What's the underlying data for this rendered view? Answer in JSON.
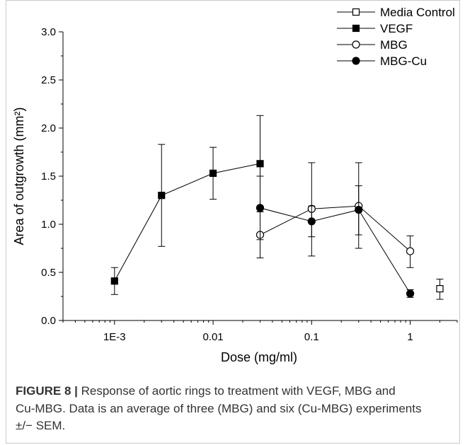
{
  "chart_data": {
    "type": "line",
    "xlabel": "Dose (mg/ml)",
    "ylabel": "Area of outgrowth (mm²)",
    "xscale": "log",
    "xlim": [
      0.0003,
      3
    ],
    "ylim": [
      0,
      3
    ],
    "xticks": [
      {
        "value": 0.001,
        "label": "1E-3"
      },
      {
        "value": 0.01,
        "label": "0.01"
      },
      {
        "value": 0.1,
        "label": "0.1"
      },
      {
        "value": 1,
        "label": "1"
      }
    ],
    "yticks": [
      {
        "value": 0,
        "label": "0.0"
      },
      {
        "value": 0.5,
        "label": "0.5"
      },
      {
        "value": 1,
        "label": "1.0"
      },
      {
        "value": 1.5,
        "label": "1.5"
      },
      {
        "value": 2,
        "label": "2.0"
      },
      {
        "value": 2.5,
        "label": "2.5"
      },
      {
        "value": 3,
        "label": "3.0"
      }
    ],
    "grid": false,
    "legend": "top-right",
    "series": [
      {
        "name": "Media Control",
        "marker": "square",
        "filled": false,
        "connected": false,
        "color": "#000000",
        "points": [
          {
            "x": 2,
            "y": 0.33,
            "err_low": 0.22,
            "err_high": 0.43
          }
        ]
      },
      {
        "name": "VEGF",
        "marker": "square",
        "filled": true,
        "connected": true,
        "color": "#000000",
        "points": [
          {
            "x": 0.001,
            "y": 0.41,
            "err_low": 0.27,
            "err_high": 0.55
          },
          {
            "x": 0.003,
            "y": 1.3,
            "err_low": 0.77,
            "err_high": 1.83
          },
          {
            "x": 0.01,
            "y": 1.53,
            "err_low": 1.26,
            "err_high": 1.8
          },
          {
            "x": 0.03,
            "y": 1.63,
            "err_low": 1.13,
            "err_high": 2.13
          }
        ]
      },
      {
        "name": "MBG",
        "marker": "circle",
        "filled": false,
        "connected": true,
        "color": "#000000",
        "points": [
          {
            "x": 0.03,
            "y": 0.89,
            "err_low": 0.65,
            "err_high": 1.13
          },
          {
            "x": 0.1,
            "y": 1.16,
            "err_low": 0.67,
            "err_high": 1.64
          },
          {
            "x": 0.3,
            "y": 1.19,
            "err_low": 0.75,
            "err_high": 1.64
          },
          {
            "x": 1,
            "y": 0.72,
            "err_low": 0.55,
            "err_high": 0.88
          }
        ]
      },
      {
        "name": "MBG-Cu",
        "marker": "circle",
        "filled": true,
        "connected": true,
        "color": "#000000",
        "points": [
          {
            "x": 0.03,
            "y": 1.17,
            "err_low": 0.84,
            "err_high": 1.5
          },
          {
            "x": 0.1,
            "y": 1.03,
            "err_low": 0.87,
            "err_high": 1.19
          },
          {
            "x": 0.3,
            "y": 1.15,
            "err_low": 0.89,
            "err_high": 1.4
          },
          {
            "x": 1,
            "y": 0.28,
            "err_low": 0.24,
            "err_high": 0.32
          }
        ]
      }
    ]
  },
  "figure": {
    "caption": {
      "label": "FIGURE 8 |",
      "lines": [
        "Response of aortic rings to treatment with VEGF, MBG and",
        "Cu-MBG. Data is an average of three (MBG) and six (Cu-MBG) experiments",
        "±/− SEM."
      ]
    }
  }
}
